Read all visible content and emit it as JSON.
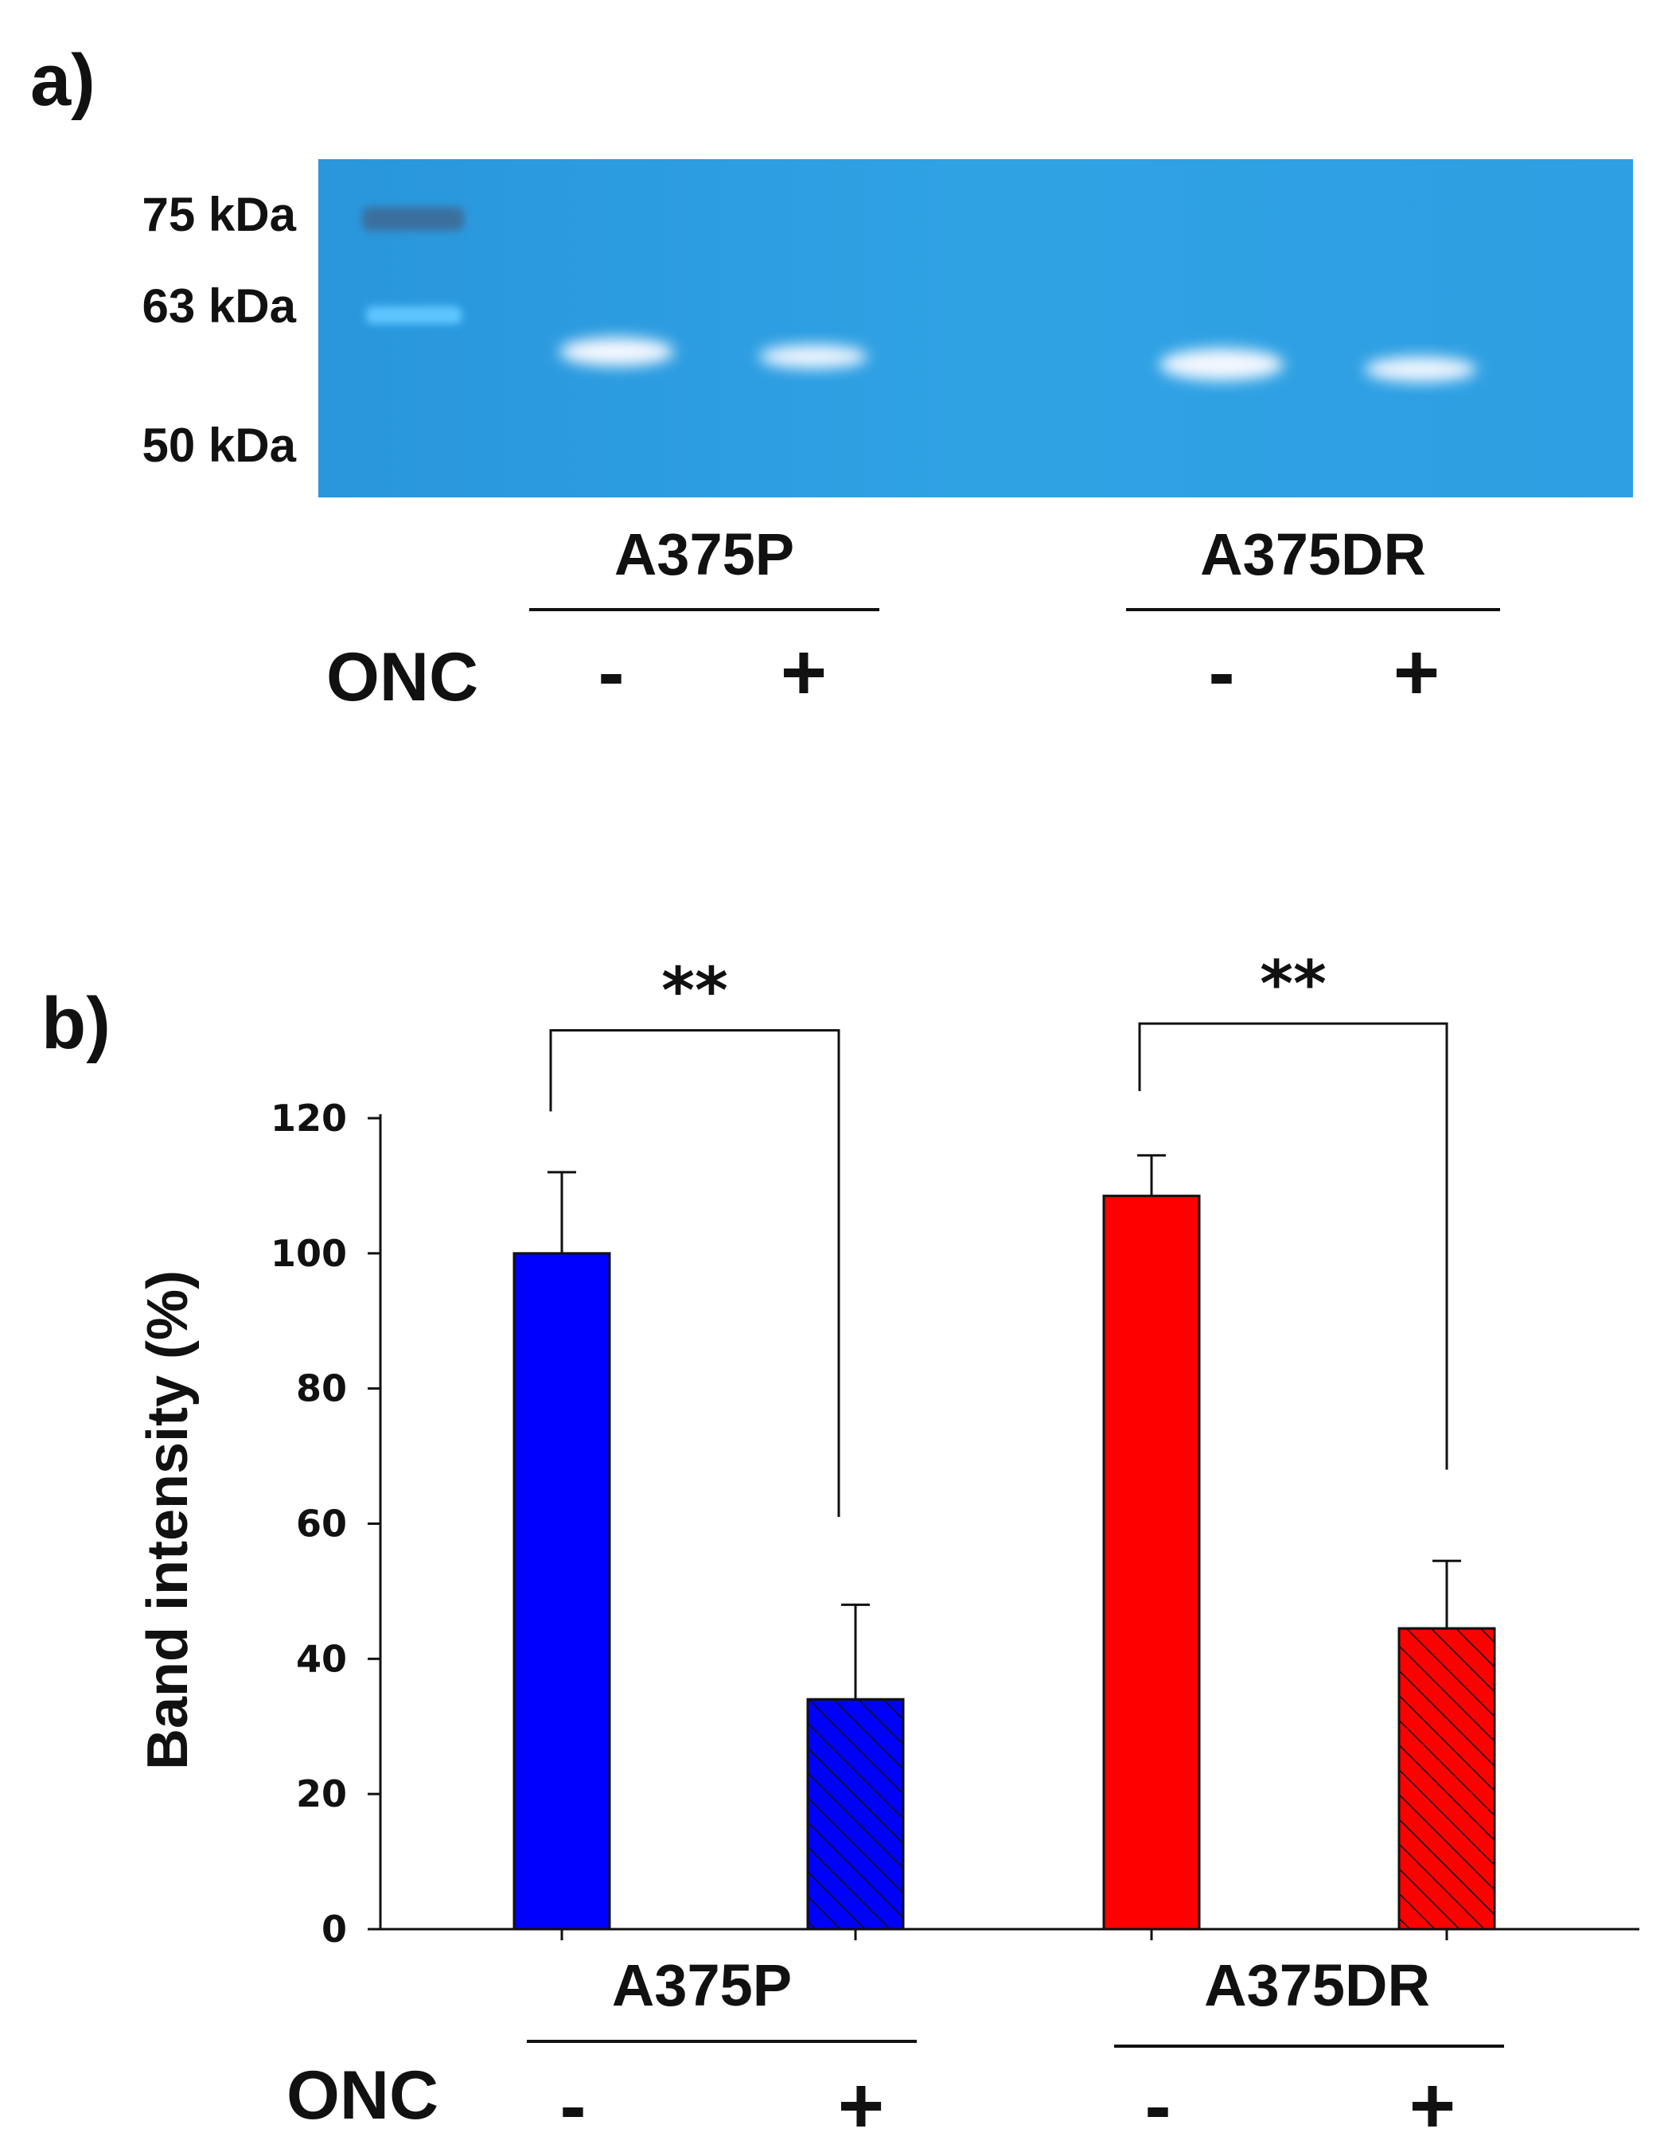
{
  "panel_a": {
    "label": "a)",
    "markers": [
      {
        "label": "75 kDa",
        "band": true
      },
      {
        "label": "63 kDa",
        "band": true
      },
      {
        "label": "50 kDa",
        "band": false
      }
    ],
    "groups": [
      "A375P",
      "A375DR"
    ],
    "treatment_label": "ONC",
    "treatment_signs": [
      "-",
      "+",
      "-",
      "+"
    ],
    "colors": {
      "gel": "#2b9de0",
      "band": "#f4f8ff",
      "marker_band_75": "#3a6f9e",
      "marker_band_63": "#5fc6ff"
    }
  },
  "panel_b": {
    "label": "b)",
    "treatment_label": "ONC",
    "treatment_signs": [
      "-",
      "+",
      "-",
      "+"
    ],
    "significance": [
      "**",
      "**"
    ]
  },
  "chart_data": {
    "type": "bar",
    "title": "",
    "xlabel": "",
    "ylabel": "Band intensity (%)",
    "ylim": [
      0,
      120
    ],
    "yticks": [
      0,
      20,
      40,
      60,
      80,
      100,
      120
    ],
    "grid": false,
    "groups": [
      "A375P",
      "A375DR"
    ],
    "categories": [
      "A375P -",
      "A375P +",
      "A375DR -",
      "A375DR +"
    ],
    "values": [
      100,
      34,
      108.5,
      44.5
    ],
    "errors": [
      12,
      14,
      6,
      10
    ],
    "bar_colors": [
      "#0000ff",
      "#0000ff",
      "#ff0000",
      "#ff0000"
    ],
    "hatched": [
      false,
      true,
      false,
      true
    ],
    "brackets": [
      {
        "from": 0,
        "to": 1,
        "left_bottom": 121,
        "right_bottom": 61,
        "top": 133,
        "label": "**"
      },
      {
        "from": 2,
        "to": 3,
        "left_bottom": 124,
        "right_bottom": 68,
        "top": 134,
        "label": "**"
      }
    ]
  }
}
